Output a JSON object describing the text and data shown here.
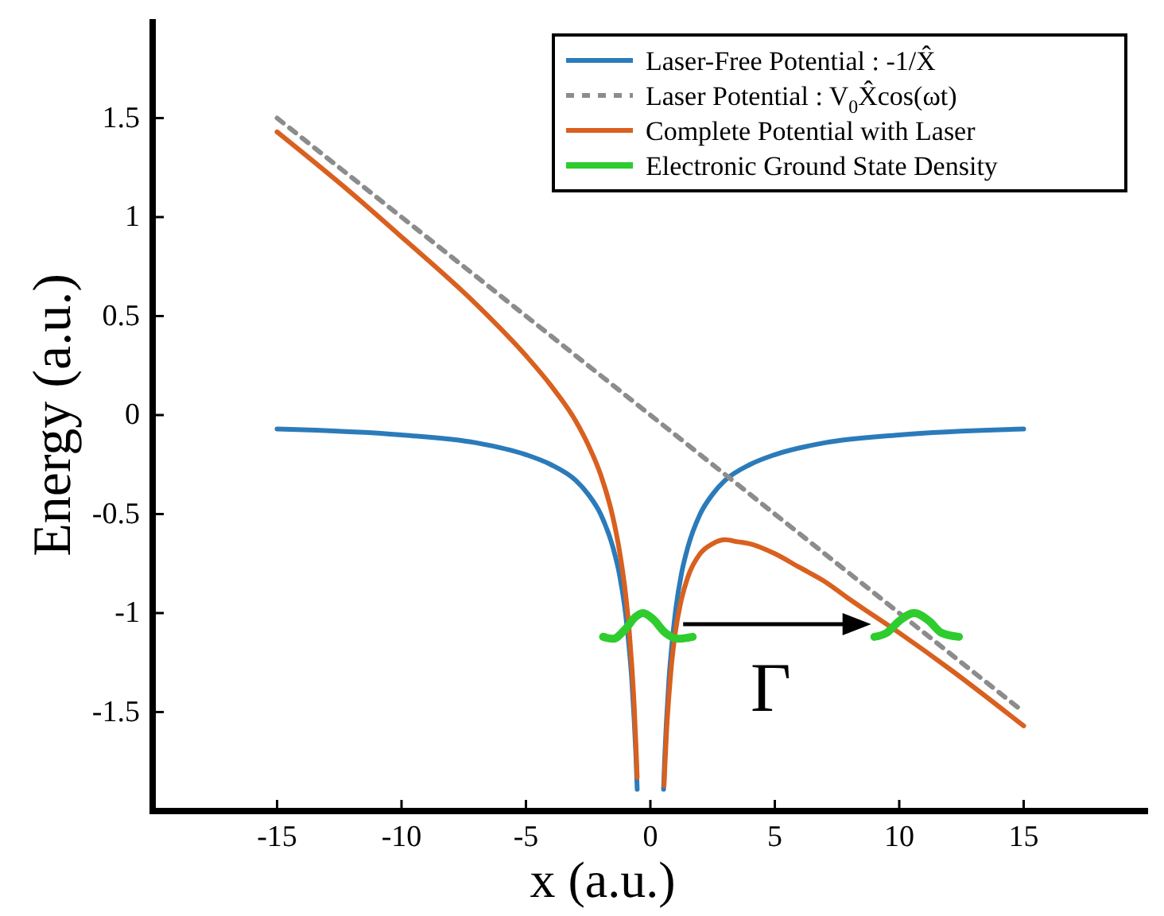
{
  "chart_data": {
    "type": "line",
    "xlabel": "x (a.u.)",
    "ylabel": "Energy (a.u.)",
    "xlim": [
      -20,
      20
    ],
    "ylim": [
      -2,
      2
    ],
    "xticks": [
      -15,
      -10,
      -5,
      0,
      5,
      10,
      15
    ],
    "yticks": [
      -1.5,
      -1,
      -0.5,
      0,
      0.5,
      1,
      1.5
    ],
    "grid": false,
    "legend": "top right",
    "marker": "none",
    "annotations": [
      "Γ"
    ],
    "series": [
      {
        "name": "Laser-Free Potential : -1/X̂",
        "color": "#2b7bba",
        "line_style": "solid",
        "x": [
          -15,
          -10,
          -7,
          -5,
          -4,
          -3,
          -2.5,
          -2,
          -1.5,
          -1.25,
          -1,
          -0.85,
          -0.75,
          -0.65,
          -0.58,
          -0.53,
          0,
          0.53,
          0.58,
          0.65,
          0.75,
          0.85,
          1,
          1.25,
          1.5,
          2,
          2.5,
          3,
          4,
          5,
          7,
          10,
          15
        ],
        "values": [
          -0.07,
          -0.1,
          -0.14,
          -0.2,
          -0.25,
          -0.33,
          -0.4,
          -0.5,
          -0.67,
          -0.8,
          -1,
          -1.18,
          -1.33,
          -1.54,
          -1.72,
          -1.89,
          null,
          -1.89,
          -1.72,
          -1.54,
          -1.33,
          -1.18,
          -1,
          -0.8,
          -0.67,
          -0.5,
          -0.4,
          -0.33,
          -0.25,
          -0.2,
          -0.14,
          -0.1,
          -0.07
        ]
      },
      {
        "name": "Laser Potential : V$_{0}$X̂cos(ωt)",
        "color": "#8c8c8c",
        "line_style": "dashed",
        "x": [
          -15,
          15
        ],
        "values": [
          1.5,
          -1.5
        ]
      },
      {
        "name": "Complete Potential with Laser",
        "color": "#d9601f",
        "line_style": "solid",
        "x": [
          -15,
          -12,
          -10,
          -7,
          -5,
          -4,
          -3,
          -2.5,
          -2,
          -1.5,
          -1.25,
          -1,
          -0.85,
          -0.75,
          -0.65,
          -0.58,
          -0.53,
          0,
          0.55,
          0.6,
          0.65,
          0.75,
          0.85,
          1,
          1.25,
          1.5,
          2,
          2.5,
          3,
          3.5,
          4,
          5,
          6,
          7,
          8,
          10,
          12,
          15
        ],
        "values": [
          1.43,
          1.12,
          0.9,
          0.56,
          0.3,
          0.15,
          -0.03,
          -0.15,
          -0.3,
          -0.52,
          -0.68,
          -0.9,
          -1.09,
          -1.26,
          -1.47,
          -1.67,
          -1.83,
          null,
          -1.87,
          -1.73,
          -1.6,
          -1.41,
          -1.26,
          -1.1,
          -0.93,
          -0.82,
          -0.7,
          -0.65,
          -0.63,
          -0.64,
          -0.65,
          -0.7,
          -0.77,
          -0.84,
          -0.93,
          -1.1,
          -1.28,
          -1.57
        ]
      },
      {
        "name": "Electronic Ground State Density",
        "color": "#2ecc2e",
        "line_style": "solid",
        "x": [
          -1.9,
          -1.5,
          -1.0,
          -0.6,
          -0.3,
          0.1,
          0.6,
          1.1,
          1.7,
          5,
          9.0,
          9.5,
          10.0,
          10.6,
          11.2,
          11.7,
          12.4
        ],
        "values": [
          -1.12,
          -1.13,
          -1.08,
          -1.02,
          -1.0,
          -1.03,
          -1.1,
          -1.13,
          -1.12,
          null,
          -1.12,
          -1.1,
          -1.04,
          -1.0,
          -1.04,
          -1.1,
          -1.12
        ]
      }
    ]
  }
}
